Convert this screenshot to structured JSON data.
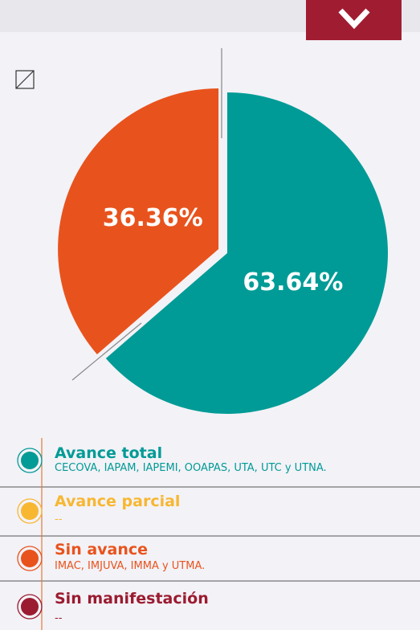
{
  "chart_data": {
    "type": "pie",
    "categories": [
      "Avance total",
      "Avance parcial",
      "Sin avance",
      "Sin manifestación"
    ],
    "descriptions": [
      "CECOVA, IAPAM, IAPEMI, OOAPAS, UTA, UTC y UTNA.",
      "--",
      "IMAC, IMJUVA, IMMA y UTMA.",
      "--"
    ],
    "values": [
      63.64,
      null,
      36.36,
      null
    ],
    "value_labels": [
      "63.64%",
      null,
      "36.36%",
      null
    ],
    "colors": [
      "#009b96",
      "#f7b731",
      "#e8531d",
      "#9b1b30"
    ]
  }
}
